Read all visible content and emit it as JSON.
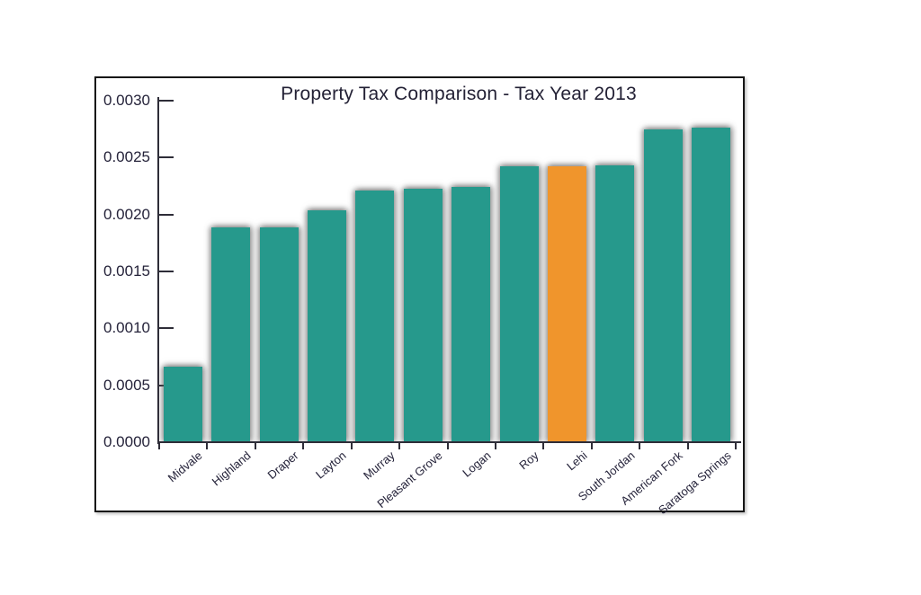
{
  "chart_data": {
    "type": "bar",
    "title": "Property Tax Comparison - Tax Year 2013",
    "categories": [
      "Midvale",
      "Highland",
      "Draper",
      "Layton",
      "Murray",
      "Pleasant Grove",
      "Logan",
      "Roy",
      "Lehi",
      "South Jordan",
      "American Fork",
      "Saratoga Springs"
    ],
    "values": [
      0.00066,
      0.00189,
      0.00189,
      0.00204,
      0.00221,
      0.00223,
      0.00224,
      0.00242,
      0.00242,
      0.00243,
      0.00275,
      0.00276
    ],
    "highlighted_category": "Lehi",
    "xlabel": "",
    "ylabel": "",
    "ylim": [
      0,
      0.003
    ],
    "ytick_labels": [
      "0.0000",
      "0.0005",
      "0.0010",
      "0.0015",
      "0.0020",
      "0.0025",
      "0.0030"
    ],
    "ytick_values": [
      0,
      0.0005,
      0.001,
      0.0015,
      0.002,
      0.0025,
      0.003
    ],
    "grid": false,
    "legend": false,
    "colors": {
      "bar": "#26998c",
      "highlight": "#f0952c",
      "axis": "#2e2d38",
      "text": "#25233a",
      "frame_border": "#161616",
      "background": "#ffffff"
    }
  }
}
